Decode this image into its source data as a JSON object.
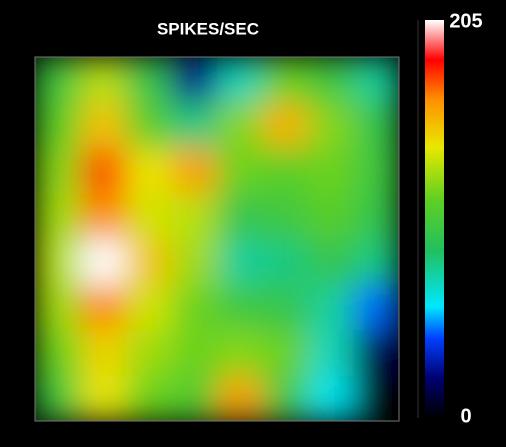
{
  "chart_data": {
    "type": "heatmap",
    "title": "SPIKES/SEC",
    "z": [
      [
        100,
        130,
        95,
        25,
        70,
        115,
        100,
        75
      ],
      [
        110,
        150,
        110,
        80,
        120,
        155,
        120,
        95
      ],
      [
        120,
        175,
        140,
        160,
        115,
        110,
        115,
        100
      ],
      [
        125,
        165,
        135,
        130,
        95,
        100,
        110,
        95
      ],
      [
        130,
        205,
        150,
        125,
        75,
        80,
        95,
        80
      ],
      [
        125,
        165,
        135,
        115,
        100,
        95,
        75,
        45
      ],
      [
        115,
        145,
        125,
        115,
        120,
        115,
        70,
        15
      ],
      [
        100,
        140,
        115,
        105,
        160,
        100,
        60,
        0
      ]
    ],
    "zlim": [
      0,
      205
    ],
    "zticks": [
      0,
      205
    ],
    "colormap": [
      {
        "stop": 0,
        "color": "#000000"
      },
      {
        "stop": 0.1,
        "color": "#000070"
      },
      {
        "stop": 0.2,
        "color": "#0040ff"
      },
      {
        "stop": 0.28,
        "color": "#00e8ff"
      },
      {
        "stop": 0.42,
        "color": "#20c060"
      },
      {
        "stop": 0.55,
        "color": "#60d020"
      },
      {
        "stop": 0.68,
        "color": "#e8e800"
      },
      {
        "stop": 0.8,
        "color": "#ff9000"
      },
      {
        "stop": 0.9,
        "color": "#ff0000"
      },
      {
        "stop": 1,
        "color": "#ffffff"
      }
    ]
  }
}
